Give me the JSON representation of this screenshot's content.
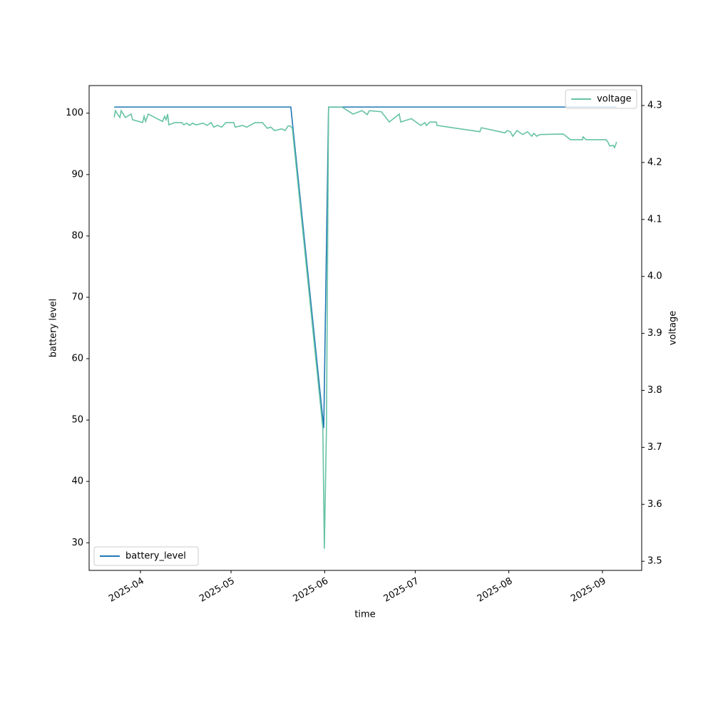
{
  "chart_data": {
    "type": "line",
    "x_label": "time",
    "y_label": "battery level",
    "y2_label": "voltage",
    "xlim": [
      20162,
      20345
    ],
    "xticks": [
      {
        "value": 20179,
        "label": "2025-04"
      },
      {
        "value": 20209,
        "label": "2025-05"
      },
      {
        "value": 20240,
        "label": "2025-06"
      },
      {
        "value": 20270,
        "label": "2025-07"
      },
      {
        "value": 20301,
        "label": "2025-08"
      },
      {
        "value": 20332,
        "label": "2025-09"
      }
    ],
    "ylim": [
      25.5,
      104.5
    ],
    "yticks": [
      30,
      40,
      50,
      60,
      70,
      80,
      90,
      100
    ],
    "y2lim": [
      3.484,
      4.335
    ],
    "y2ticks": [
      3.5,
      3.6,
      3.7,
      3.8,
      3.9,
      {
        "value": 4,
        "label": "4.0"
      },
      4.1,
      4.2,
      4.3
    ],
    "series": [
      {
        "name": "battery_level",
        "color": "#1f77b4",
        "axis": "y",
        "legend_loc": "lower left",
        "x": [
          20170.3,
          20228.8,
          20239.7,
          20241.3,
          20336.7
        ],
        "values": [
          101,
          101,
          48.7,
          101,
          101
        ]
      },
      {
        "name": "voltage",
        "color": "#66c2a5",
        "axis": "y2",
        "legend_loc": "upper right",
        "x": [
          20170.3,
          20170.7,
          20171.4,
          20172.2,
          20172.6,
          20173.3,
          20174.0,
          20175.0,
          20175.9,
          20176.4,
          20178.5,
          20179.7,
          20180.2,
          20180.7,
          20181.6,
          20186.3,
          20187.0,
          20187.5,
          20188.0,
          20188.4,
          20190.3,
          20192.7,
          20193.4,
          20194.3,
          20195.3,
          20196.2,
          20197.4,
          20199.8,
          20201.0,
          20202.4,
          20203.3,
          20204.5,
          20205.9,
          20207.3,
          20209.9,
          20210.4,
          20212.8,
          20214.2,
          20217.0,
          20219.4,
          20221.0,
          20222.2,
          20223.4,
          20225.8,
          20226.9,
          20227.9,
          20228.6,
          20229.3,
          20239.4,
          20239.9,
          20240.6,
          20241.3,
          20245.8,
          20249.4,
          20252.4,
          20254.1,
          20254.8,
          20258.8,
          20261.4,
          20264.7,
          20265.2,
          20268.7,
          20271.8,
          20273.2,
          20273.7,
          20274.9,
          20277.0,
          20277.2,
          20291.4,
          20291.9,
          20299.7,
          20300.4,
          20301.5,
          20302.3,
          20303.7,
          20305.6,
          20307.2,
          20308.6,
          20309.3,
          20310.3,
          20311.2,
          20319.0,
          20321.4,
          20325.4,
          20325.6,
          20326.6,
          20333.2,
          20333.9,
          20334.4,
          20335.6,
          20336.0,
          20336.7
        ],
        "values": [
          4.279,
          4.291,
          4.285,
          4.279,
          4.291,
          4.285,
          4.279,
          4.282,
          4.285,
          4.275,
          4.272,
          4.27,
          4.281,
          4.272,
          4.285,
          4.272,
          4.281,
          4.275,
          4.285,
          4.266,
          4.27,
          4.27,
          4.266,
          4.269,
          4.265,
          4.269,
          4.266,
          4.269,
          4.265,
          4.27,
          4.262,
          4.265,
          4.262,
          4.27,
          4.27,
          4.262,
          4.265,
          4.262,
          4.27,
          4.27,
          4.26,
          4.262,
          4.256,
          4.259,
          4.256,
          4.264,
          4.264,
          4.26,
          3.734,
          3.522,
          3.734,
          4.297,
          4.297,
          4.285,
          4.291,
          4.284,
          4.291,
          4.289,
          4.271,
          4.285,
          4.271,
          4.277,
          4.265,
          4.27,
          4.265,
          4.271,
          4.271,
          4.265,
          4.254,
          4.261,
          4.252,
          4.256,
          4.254,
          4.246,
          4.256,
          4.249,
          4.254,
          4.246,
          4.251,
          4.246,
          4.249,
          4.25,
          4.24,
          4.24,
          4.245,
          4.24,
          4.24,
          4.235,
          4.229,
          4.23,
          4.226,
          4.236
        ]
      }
    ]
  }
}
